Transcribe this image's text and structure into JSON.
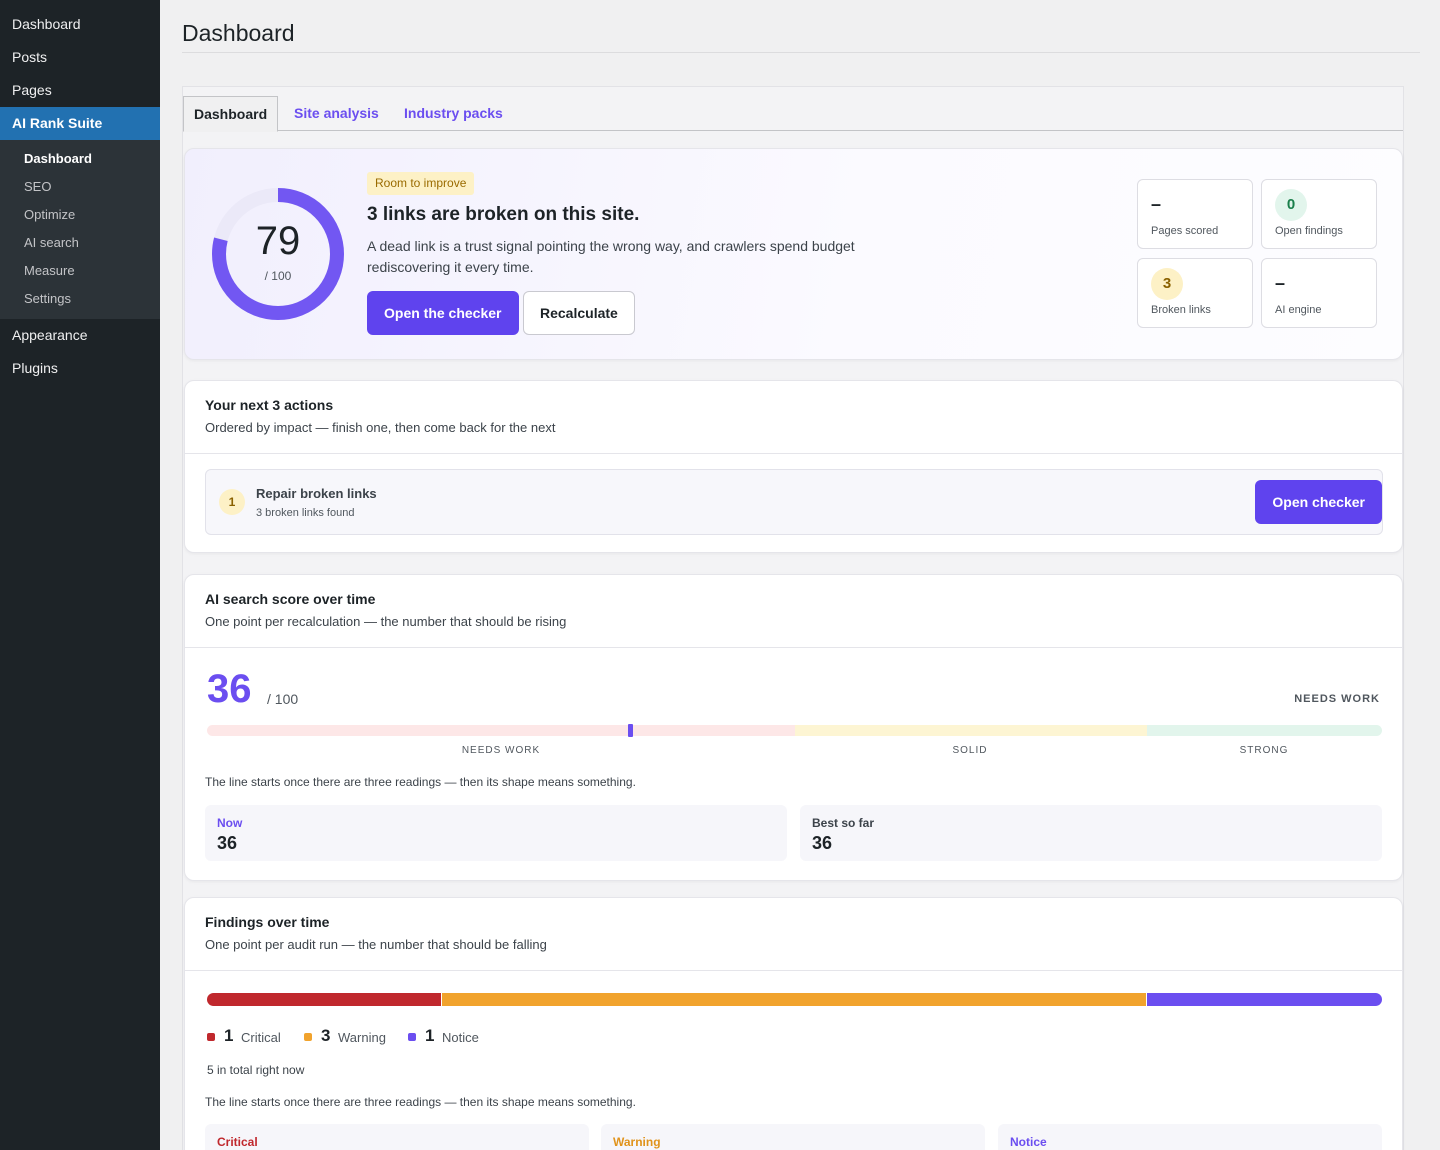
{
  "sidebar": {
    "items": [
      {
        "label": "Dashboard"
      },
      {
        "label": "Posts"
      },
      {
        "label": "Pages"
      },
      {
        "label": "AI Rank Suite"
      },
      {
        "label": "Appearance"
      },
      {
        "label": "Plugins"
      }
    ],
    "submenu": [
      {
        "label": "Dashboard"
      },
      {
        "label": "SEO"
      },
      {
        "label": "Optimize"
      },
      {
        "label": "AI search"
      },
      {
        "label": "Measure"
      },
      {
        "label": "Settings"
      }
    ]
  },
  "page": {
    "title": "Dashboard"
  },
  "tabs": [
    {
      "label": "Dashboard"
    },
    {
      "label": "Site analysis"
    },
    {
      "label": "Industry packs"
    }
  ],
  "hero": {
    "score": "79",
    "score_of": "/ 100",
    "score_fraction": 0.79,
    "badge": "Room to improve",
    "title": "3 links are broken on this site.",
    "description": "A dead link is a trust signal pointing the wrong way, and crawlers spend budget rediscovering it every time.",
    "primary_button": "Open the checker",
    "secondary_button": "Recalculate",
    "stats": [
      {
        "value": "–",
        "label": "Pages scored"
      },
      {
        "value": "0",
        "label": "Open findings"
      },
      {
        "value": "3",
        "label": "Broken links"
      },
      {
        "value": "–",
        "label": "AI engine"
      }
    ]
  },
  "actions": {
    "title": "Your next 3 actions",
    "subtitle": "Ordered by impact — finish one, then come back for the next",
    "items": [
      {
        "number": "1",
        "title": "Repair broken links",
        "detail": "3 broken links found",
        "button": "Open checker"
      }
    ]
  },
  "score_over_time": {
    "title": "AI search score over time",
    "subtitle": "One point per recalculation — the number that should be rising",
    "score": "36",
    "score_of": "/ 100",
    "status": "NEEDS WORK",
    "score_value": 36,
    "bands": [
      {
        "label": "NEEDS WORK",
        "color": "#fde7e7"
      },
      {
        "label": "SOLID",
        "color": "#fdf5d3"
      },
      {
        "label": "STRONG",
        "color": "#e2f5ec"
      }
    ],
    "note": "The line starts once there are three readings — then its shape means something.",
    "now_label": "Now",
    "now_value": "36",
    "best_label": "Best so far",
    "best_value": "36"
  },
  "findings": {
    "title": "Findings over time",
    "subtitle": "One point per audit run — the number that should be falling",
    "segments": [
      {
        "count": "1",
        "label": "Critical",
        "color": "#c0282d"
      },
      {
        "count": "3",
        "label": "Warning",
        "color": "#f1a32d"
      },
      {
        "count": "1",
        "label": "Notice",
        "color": "#6b4ef0"
      }
    ],
    "total": "5 in total right now",
    "note": "The line starts once there are three readings — then its shape means something.",
    "cards": [
      {
        "label": "Critical",
        "color": "#c0282d"
      },
      {
        "label": "Warning",
        "color": "#e0931b"
      },
      {
        "label": "Notice",
        "color": "#6b4ef0"
      }
    ]
  },
  "colors": {
    "accent": "#5f43ee",
    "sidebar_bg": "#1d2327",
    "sidebar_active": "#2271b1"
  }
}
